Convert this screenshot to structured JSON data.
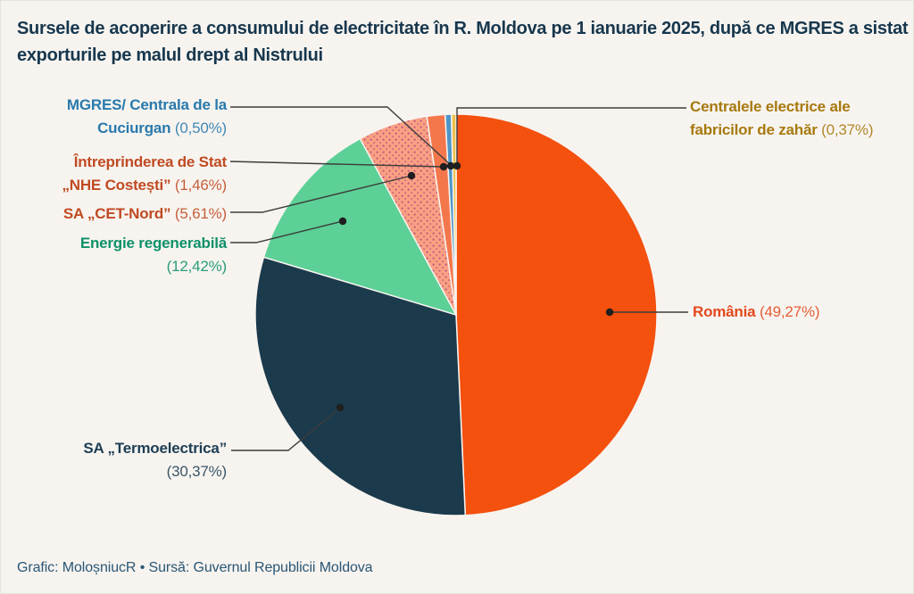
{
  "colors": {
    "background": "#F7F4F0",
    "title": "#17374D",
    "footer": "#2A5674",
    "leader_line": "#3C3C3C",
    "leader_dot": "#1F1F1F",
    "slice_separator": "#F7F4F0"
  },
  "chart_data": {
    "type": "pie",
    "title": "Sursele de acoperire a consumului de electricitate în R. Moldova pe 1 ianuarie 2025, după ce MGRES a sistat exporturile pe malul drept al Nistrului",
    "source_line": "Grafic: MoloșniucR • Sursă: Guvernul Republicii Moldova",
    "start_angle": "top",
    "direction": "clockwise",
    "legend_position": "callout-labels",
    "slices": [
      {
        "name": "România",
        "value": 49.27,
        "display": "(49,27%)",
        "color": "#F4500E",
        "label_color": "#E3491D",
        "pattern": "solid"
      },
      {
        "name": "SA „Termoelectrica”",
        "value": 30.37,
        "display": "(30,37%)",
        "color": "#1B3A4C",
        "label_color": "#1E3E54",
        "pattern": "solid"
      },
      {
        "name": "Energie regenerabilă",
        "value": 12.42,
        "display": "(12,42%)",
        "color": "#5CD096",
        "label_color": "#0E9168",
        "pattern": "solid"
      },
      {
        "name": "SA „CET-Nord”",
        "value": 5.61,
        "display": "(5,61%)",
        "color": "#F9A183",
        "dot_color": "#C2557F",
        "label_color": "#C04A22",
        "pattern": "dots"
      },
      {
        "name": "Întreprinderea de Stat „NHE Costești”",
        "value": 1.46,
        "display": "(1,46%)",
        "color": "#F4774C",
        "label_color": "#C04A22",
        "pattern": "solid"
      },
      {
        "name": "MGRES/ Centrala de la Cuciurgan",
        "value": 0.5,
        "display": "(0,50%)",
        "color": "#4E95C7",
        "label_color": "#2979AC",
        "pattern": "solid"
      },
      {
        "name": "Centralele electrice ale fabricilor de zahăr",
        "value": 0.37,
        "display": "(0,37%)",
        "color": "#EEC14B",
        "label_color": "#A7790E",
        "pattern": "solid"
      }
    ]
  }
}
